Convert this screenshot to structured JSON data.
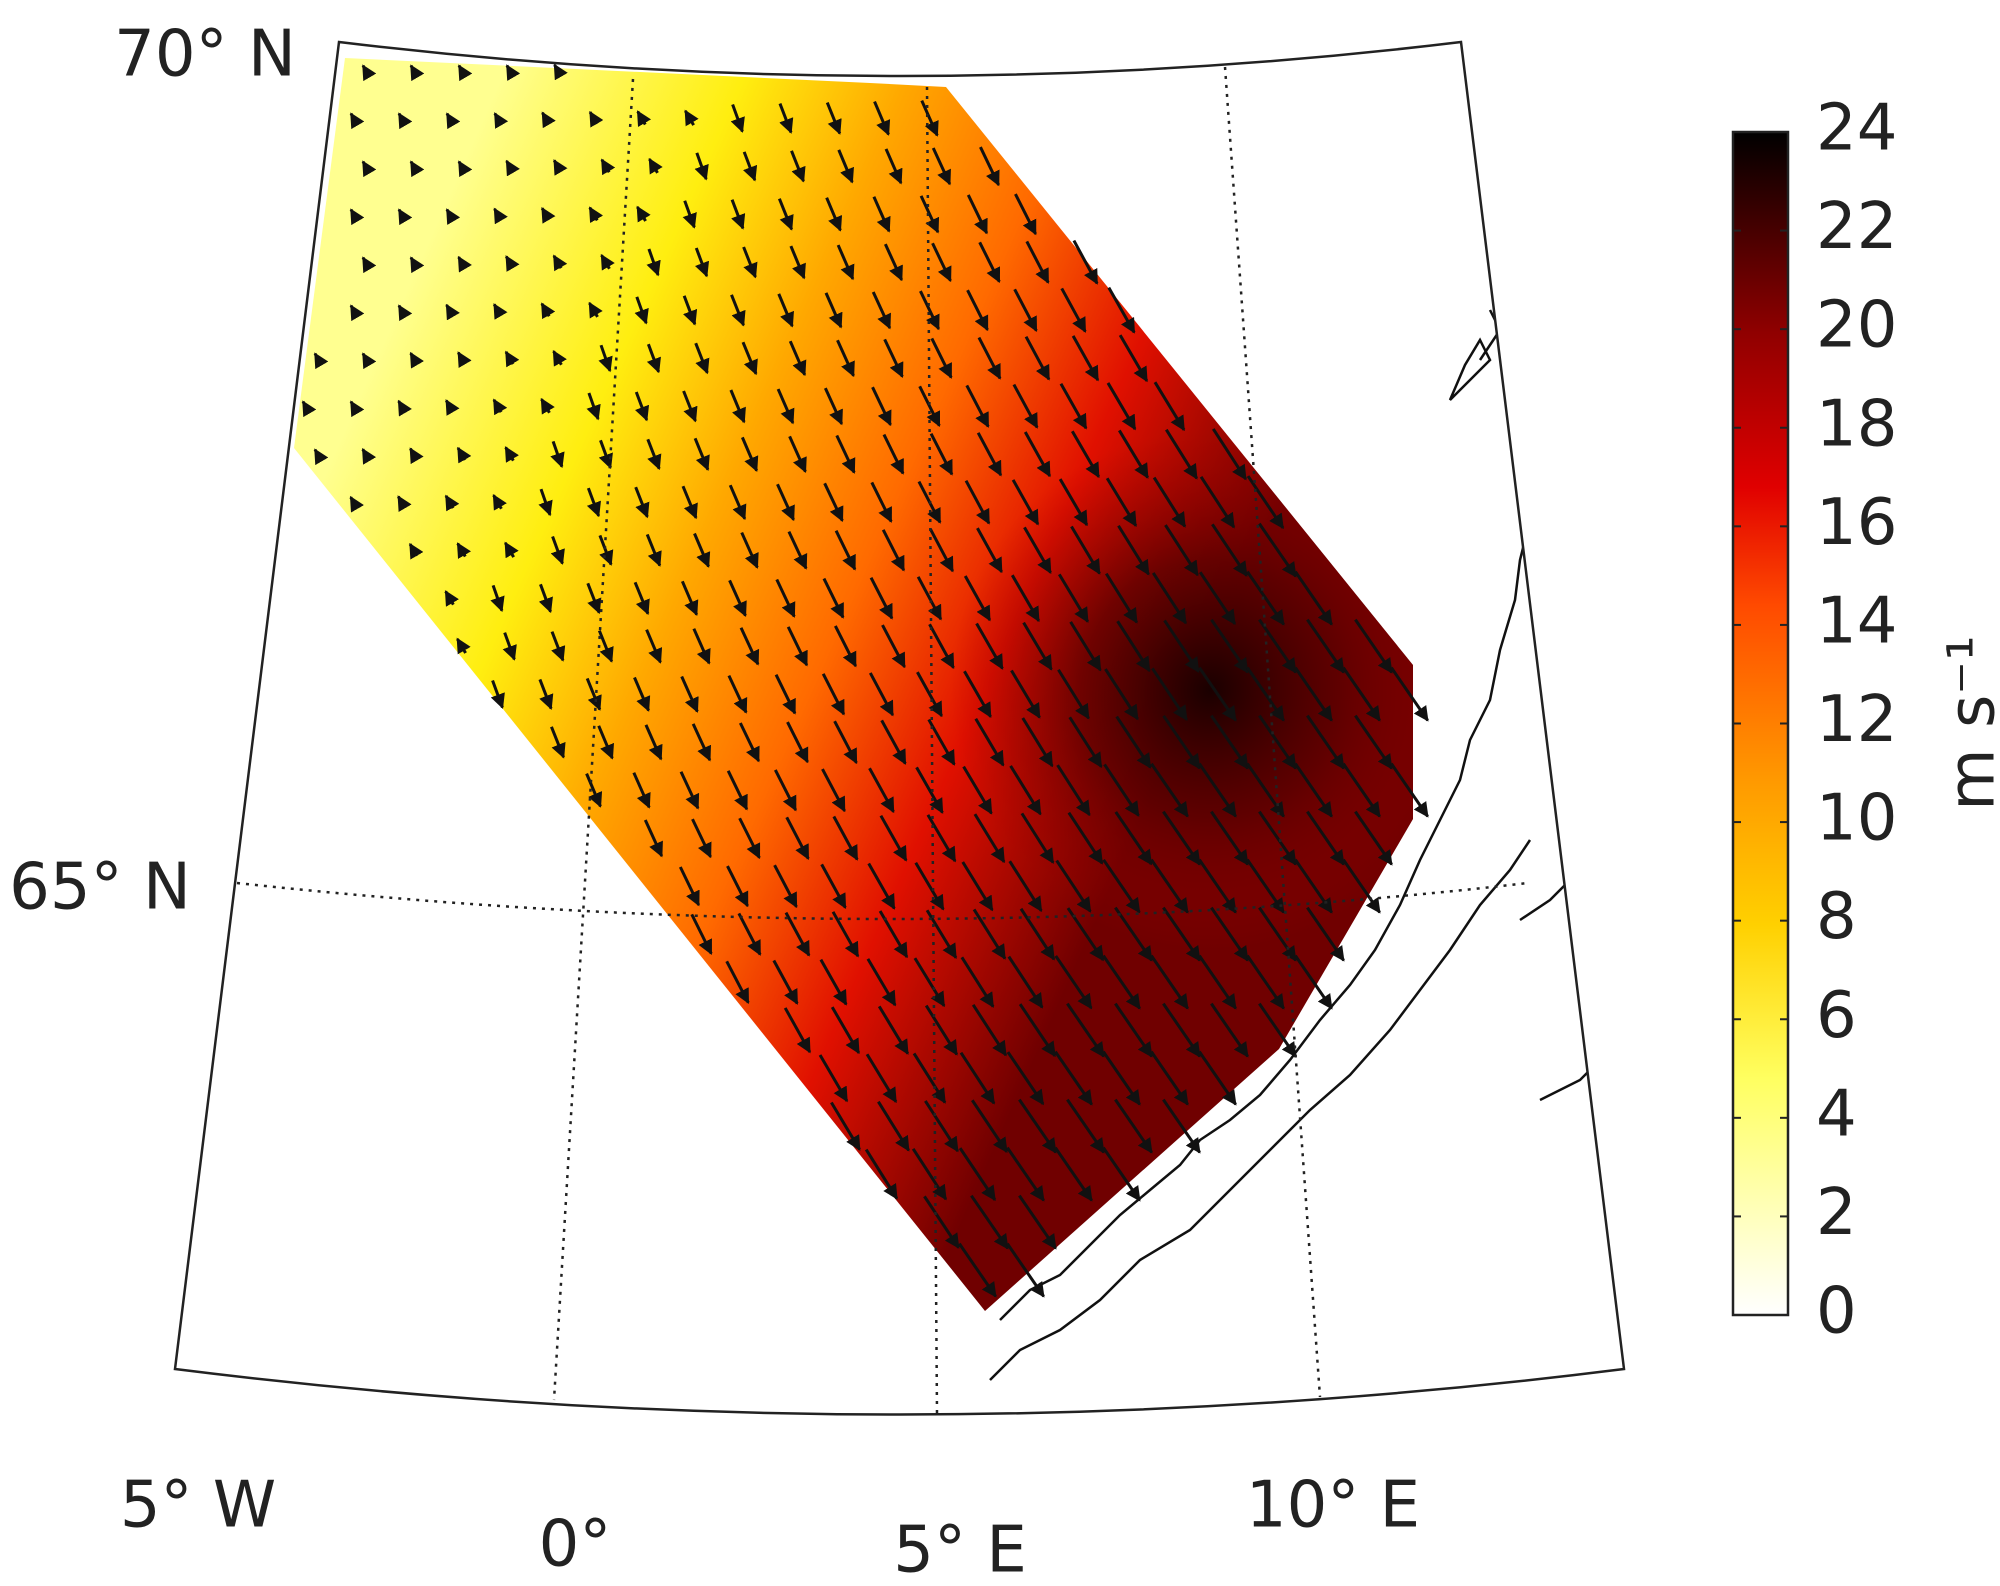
{
  "map": {
    "lat_labels": [
      "70° N",
      "65° N"
    ],
    "lon_labels": [
      "5° W",
      "0°",
      "5° E",
      "10° E"
    ],
    "colorbar": {
      "lim": [
        0,
        24
      ],
      "ticks": [
        0,
        2,
        4,
        6,
        8,
        10,
        12,
        14,
        16,
        18,
        20,
        22,
        24
      ],
      "label": "m s⁻¹"
    }
  }
}
